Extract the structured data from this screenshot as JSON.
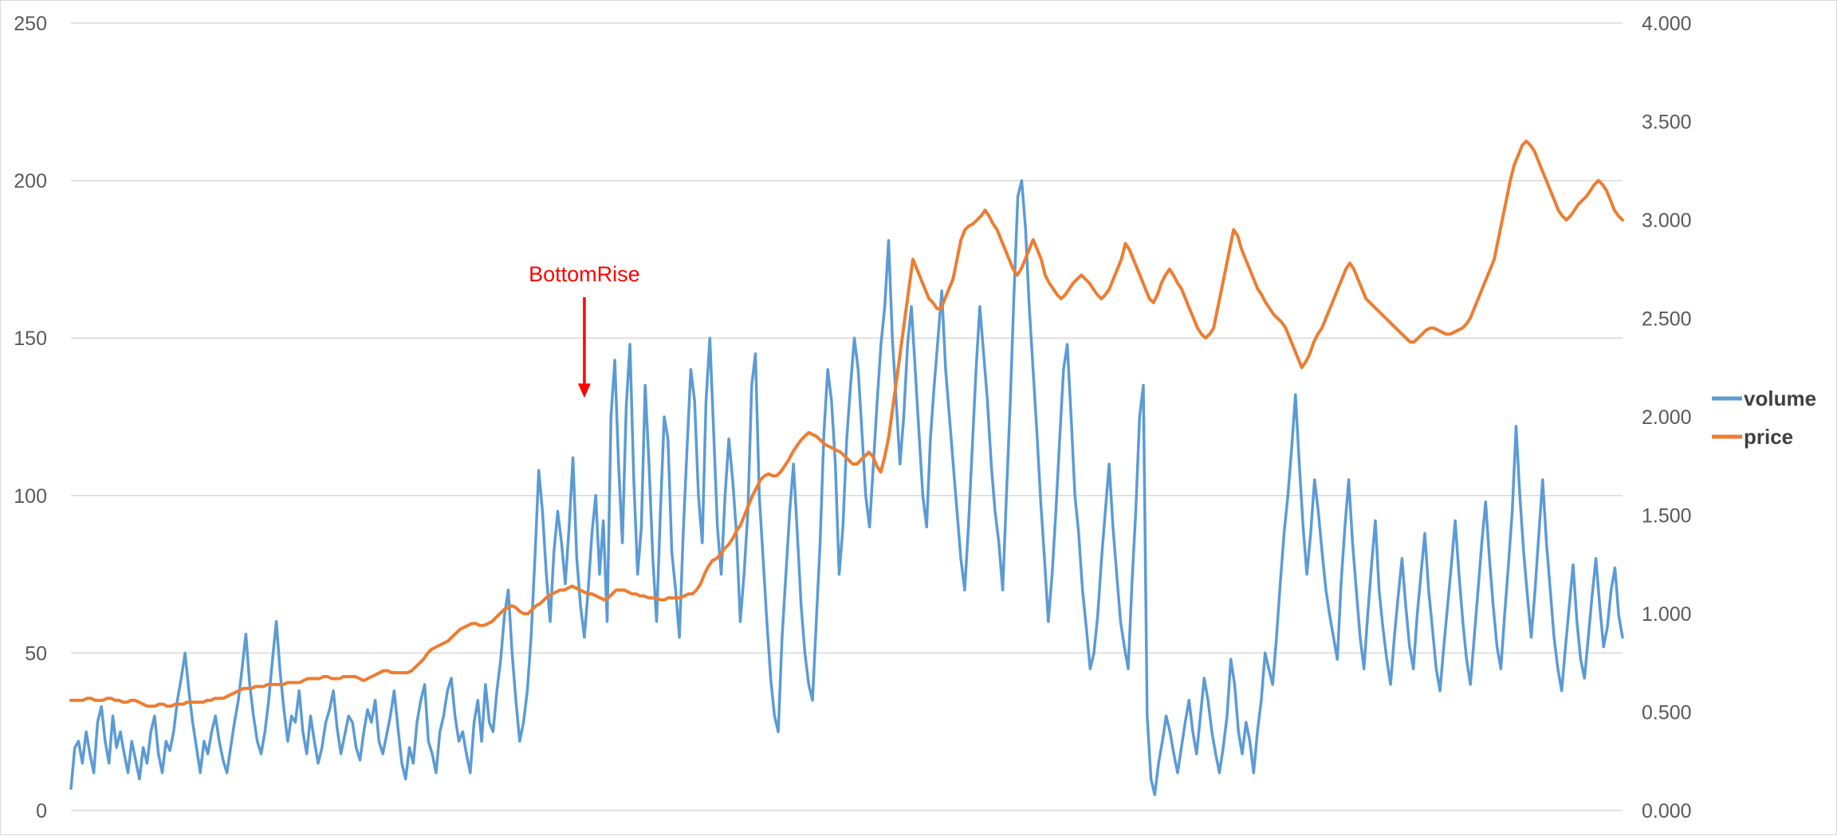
{
  "chart_data": {
    "type": "line",
    "title": "",
    "xlabel": "",
    "ylabel": "",
    "y2label": "",
    "grid": true,
    "legend_position": "right",
    "ylim": [
      0,
      250
    ],
    "y2lim": [
      0,
      4
    ],
    "y_ticks": [
      {
        "value": 0,
        "label": "0"
      },
      {
        "value": 50,
        "label": "50"
      },
      {
        "value": 100,
        "label": "100"
      },
      {
        "value": 150,
        "label": "150"
      },
      {
        "value": 200,
        "label": "200"
      },
      {
        "value": 250,
        "label": "250"
      }
    ],
    "y2_ticks": [
      {
        "value": 0,
        "label": "0.000"
      },
      {
        "value": 0.5,
        "label": "0.500"
      },
      {
        "value": 1,
        "label": "1.000"
      },
      {
        "value": 1.5,
        "label": "1.500"
      },
      {
        "value": 2,
        "label": "2.000"
      },
      {
        "value": 2.5,
        "label": "2.500"
      },
      {
        "value": 3,
        "label": "3.000"
      },
      {
        "value": 3.5,
        "label": "3.500"
      },
      {
        "value": 4,
        "label": "4.000"
      }
    ],
    "series": [
      {
        "name": "volume",
        "axis": "left",
        "color": "#5b9bd5",
        "values": [
          7,
          20,
          22,
          15,
          25,
          18,
          12,
          28,
          33,
          22,
          15,
          30,
          20,
          25,
          18,
          12,
          22,
          16,
          10,
          20,
          15,
          25,
          30,
          18,
          12,
          22,
          19,
          25,
          35,
          42,
          50,
          38,
          28,
          20,
          12,
          22,
          18,
          25,
          30,
          22,
          16,
          12,
          20,
          28,
          35,
          45,
          56,
          40,
          30,
          22,
          18,
          25,
          35,
          48,
          60,
          44,
          32,
          22,
          30,
          28,
          38,
          25,
          18,
          30,
          22,
          15,
          20,
          28,
          32,
          38,
          26,
          18,
          24,
          30,
          28,
          20,
          16,
          25,
          32,
          28,
          35,
          22,
          18,
          24,
          30,
          38,
          26,
          15,
          10,
          20,
          15,
          28,
          35,
          40,
          22,
          18,
          12,
          25,
          30,
          38,
          42,
          30,
          22,
          25,
          18,
          12,
          28,
          35,
          22,
          40,
          28,
          25,
          38,
          48,
          62,
          70,
          50,
          35,
          22,
          28,
          38,
          55,
          80,
          108,
          95,
          75,
          60,
          82,
          95,
          85,
          72,
          90,
          112,
          80,
          65,
          55,
          70,
          88,
          100,
          75,
          92,
          60,
          125,
          143,
          110,
          85,
          128,
          148,
          105,
          75,
          90,
          135,
          110,
          80,
          60,
          95,
          125,
          118,
          82,
          70,
          55,
          88,
          115,
          140,
          130,
          100,
          85,
          130,
          150,
          120,
          90,
          75,
          100,
          118,
          105,
          88,
          60,
          75,
          95,
          135,
          145,
          100,
          80,
          60,
          42,
          30,
          25,
          55,
          75,
          95,
          110,
          88,
          65,
          50,
          40,
          35,
          60,
          85,
          120,
          140,
          130,
          110,
          75,
          90,
          118,
          135,
          150,
          140,
          120,
          100,
          90,
          110,
          130,
          148,
          160,
          181,
          150,
          130,
          110,
          125,
          148,
          160,
          140,
          120,
          100,
          90,
          118,
          135,
          150,
          165,
          140,
          125,
          110,
          95,
          80,
          70,
          90,
          115,
          140,
          160,
          145,
          130,
          110,
          95,
          85,
          70,
          100,
          130,
          165,
          195,
          200,
          185,
          160,
          140,
          120,
          98,
          80,
          60,
          75,
          95,
          118,
          140,
          148,
          125,
          100,
          88,
          70,
          58,
          45,
          50,
          62,
          80,
          95,
          110,
          90,
          75,
          60,
          52,
          45,
          72,
          95,
          125,
          135,
          30,
          10,
          5,
          15,
          22,
          30,
          25,
          18,
          12,
          20,
          28,
          35,
          25,
          18,
          30,
          42,
          35,
          25,
          18,
          12,
          20,
          30,
          48,
          40,
          25,
          18,
          28,
          22,
          12,
          25,
          35,
          50,
          45,
          40,
          55,
          72,
          88,
          100,
          115,
          132,
          110,
          90,
          75,
          88,
          105,
          95,
          82,
          70,
          62,
          55,
          48,
          72,
          90,
          105,
          85,
          70,
          55,
          45,
          62,
          78,
          92,
          70,
          58,
          48,
          40,
          55,
          68,
          80,
          65,
          52,
          45,
          62,
          75,
          88,
          70,
          58,
          45,
          38,
          52,
          65,
          78,
          92,
          75,
          60,
          48,
          40,
          55,
          70,
          85,
          98,
          80,
          65,
          52,
          45,
          62,
          78,
          95,
          122,
          100,
          82,
          68,
          55,
          70,
          88,
          105,
          85,
          70,
          55,
          45,
          38,
          52,
          65,
          78,
          60,
          48,
          42,
          55,
          68,
          80,
          65,
          52,
          58,
          70,
          77,
          62,
          55
        ]
      },
      {
        "name": "price",
        "axis": "right",
        "color": "#ed7d31",
        "values": [
          0.56,
          0.56,
          0.56,
          0.56,
          0.57,
          0.57,
          0.56,
          0.56,
          0.56,
          0.57,
          0.57,
          0.56,
          0.56,
          0.55,
          0.55,
          0.56,
          0.56,
          0.55,
          0.54,
          0.53,
          0.53,
          0.53,
          0.54,
          0.54,
          0.53,
          0.53,
          0.54,
          0.54,
          0.54,
          0.55,
          0.55,
          0.55,
          0.55,
          0.55,
          0.56,
          0.56,
          0.57,
          0.57,
          0.57,
          0.58,
          0.59,
          0.6,
          0.61,
          0.62,
          0.62,
          0.62,
          0.63,
          0.63,
          0.63,
          0.64,
          0.64,
          0.64,
          0.64,
          0.64,
          0.65,
          0.65,
          0.65,
          0.65,
          0.66,
          0.67,
          0.67,
          0.67,
          0.67,
          0.68,
          0.68,
          0.67,
          0.67,
          0.67,
          0.68,
          0.68,
          0.68,
          0.68,
          0.67,
          0.66,
          0.67,
          0.68,
          0.69,
          0.7,
          0.71,
          0.71,
          0.7,
          0.7,
          0.7,
          0.7,
          0.7,
          0.71,
          0.73,
          0.75,
          0.77,
          0.8,
          0.82,
          0.83,
          0.84,
          0.85,
          0.86,
          0.88,
          0.9,
          0.92,
          0.93,
          0.94,
          0.95,
          0.95,
          0.94,
          0.94,
          0.95,
          0.96,
          0.98,
          1.0,
          1.02,
          1.03,
          1.04,
          1.03,
          1.01,
          1.0,
          1.0,
          1.02,
          1.04,
          1.05,
          1.07,
          1.09,
          1.1,
          1.11,
          1.12,
          1.12,
          1.13,
          1.14,
          1.13,
          1.12,
          1.11,
          1.1,
          1.1,
          1.09,
          1.08,
          1.07,
          1.08,
          1.1,
          1.12,
          1.12,
          1.12,
          1.11,
          1.1,
          1.1,
          1.09,
          1.09,
          1.08,
          1.08,
          1.08,
          1.07,
          1.07,
          1.08,
          1.08,
          1.08,
          1.08,
          1.09,
          1.1,
          1.1,
          1.12,
          1.15,
          1.2,
          1.24,
          1.27,
          1.28,
          1.3,
          1.33,
          1.35,
          1.38,
          1.42,
          1.45,
          1.5,
          1.55,
          1.6,
          1.64,
          1.68,
          1.7,
          1.71,
          1.7,
          1.7,
          1.72,
          1.75,
          1.78,
          1.82,
          1.85,
          1.88,
          1.9,
          1.92,
          1.91,
          1.9,
          1.88,
          1.86,
          1.85,
          1.84,
          1.83,
          1.82,
          1.8,
          1.78,
          1.76,
          1.76,
          1.78,
          1.8,
          1.82,
          1.8,
          1.75,
          1.72,
          1.8,
          1.9,
          2.05,
          2.2,
          2.35,
          2.5,
          2.65,
          2.8,
          2.75,
          2.7,
          2.65,
          2.6,
          2.58,
          2.55,
          2.55,
          2.6,
          2.65,
          2.7,
          2.8,
          2.9,
          2.95,
          2.97,
          2.98,
          3.0,
          3.02,
          3.05,
          3.02,
          2.98,
          2.95,
          2.9,
          2.85,
          2.8,
          2.75,
          2.72,
          2.75,
          2.8,
          2.85,
          2.9,
          2.85,
          2.8,
          2.72,
          2.68,
          2.65,
          2.62,
          2.6,
          2.62,
          2.65,
          2.68,
          2.7,
          2.72,
          2.7,
          2.68,
          2.65,
          2.62,
          2.6,
          2.62,
          2.65,
          2.7,
          2.75,
          2.8,
          2.88,
          2.85,
          2.8,
          2.75,
          2.7,
          2.65,
          2.6,
          2.58,
          2.62,
          2.68,
          2.72,
          2.75,
          2.72,
          2.68,
          2.65,
          2.6,
          2.55,
          2.5,
          2.45,
          2.42,
          2.4,
          2.42,
          2.45,
          2.55,
          2.65,
          2.75,
          2.85,
          2.95,
          2.92,
          2.85,
          2.8,
          2.75,
          2.7,
          2.65,
          2.62,
          2.58,
          2.55,
          2.52,
          2.5,
          2.48,
          2.45,
          2.4,
          2.35,
          2.3,
          2.25,
          2.28,
          2.32,
          2.38,
          2.42,
          2.45,
          2.5,
          2.55,
          2.6,
          2.65,
          2.7,
          2.75,
          2.78,
          2.75,
          2.7,
          2.65,
          2.6,
          2.58,
          2.56,
          2.54,
          2.52,
          2.5,
          2.48,
          2.46,
          2.44,
          2.42,
          2.4,
          2.38,
          2.38,
          2.4,
          2.42,
          2.44,
          2.45,
          2.45,
          2.44,
          2.43,
          2.42,
          2.42,
          2.43,
          2.44,
          2.45,
          2.47,
          2.5,
          2.55,
          2.6,
          2.65,
          2.7,
          2.75,
          2.8,
          2.9,
          3.0,
          3.1,
          3.2,
          3.28,
          3.33,
          3.38,
          3.4,
          3.38,
          3.35,
          3.3,
          3.25,
          3.2,
          3.15,
          3.1,
          3.05,
          3.02,
          3.0,
          3.02,
          3.05,
          3.08,
          3.1,
          3.12,
          3.15,
          3.18,
          3.2,
          3.18,
          3.15,
          3.1,
          3.05,
          3.02,
          3.0
        ]
      }
    ],
    "annotations": [
      {
        "text": "BottomRise",
        "color": "#ff0000",
        "x_index": 135,
        "arrow_top_value": 163,
        "arrow_bottom_value": 131
      }
    ]
  }
}
